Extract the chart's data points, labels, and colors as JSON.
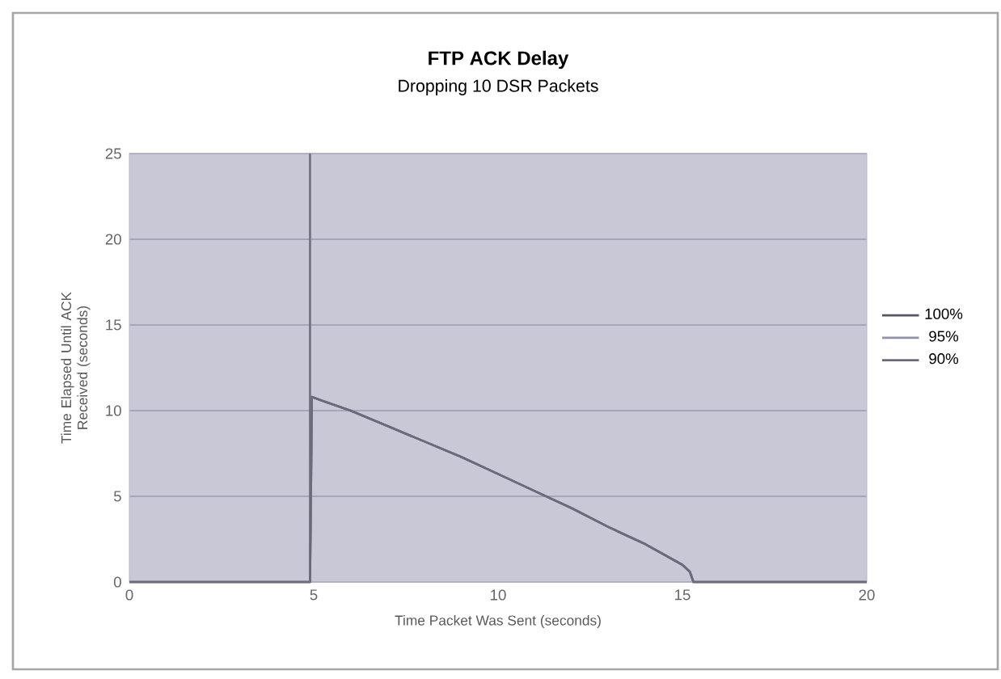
{
  "chart_data": {
    "type": "line",
    "title": "FTP ACK Delay",
    "subtitle": "Dropping 10 DSR Packets",
    "xlabel": "Time Packet Was Sent (seconds)",
    "ylabel": "Time Elapsed Until ACK Received (seconds)",
    "xlim": [
      0,
      20
    ],
    "xticks": [
      0,
      5,
      10,
      15,
      20
    ],
    "ylim": [
      0,
      25
    ],
    "yticks": [
      0,
      5,
      10,
      15,
      20,
      25
    ],
    "grid": "y",
    "legend": "right",
    "marker": "none",
    "line_style": "solid",
    "ref_lines": [
      {
        "axis": "x",
        "value": 4.9,
        "color": "#707080"
      }
    ],
    "series": [
      {
        "name": "100%",
        "color": "#555566",
        "x": [
          0,
          4.9,
          4.95,
          5.2,
          6,
          7,
          8,
          9,
          10,
          11,
          12,
          13,
          14,
          15,
          15.2,
          15.3,
          20
        ],
        "values": [
          0,
          0,
          10.8,
          10.6,
          10,
          9.1,
          8.2,
          7.3,
          6.3,
          5.3,
          4.3,
          3.2,
          2.2,
          1.0,
          0.6,
          0,
          0
        ]
      },
      {
        "name": "95%",
        "color": "#9090a8",
        "x": [
          0,
          4.9,
          4.95,
          5.2,
          6,
          7,
          8,
          9,
          10,
          11,
          12,
          13,
          14,
          15,
          15.2,
          15.3,
          20
        ],
        "values": [
          0,
          0,
          10.8,
          10.6,
          10,
          9.1,
          8.2,
          7.3,
          6.3,
          5.3,
          4.3,
          3.2,
          2.2,
          1.0,
          0.6,
          0,
          0
        ]
      },
      {
        "name": "90%",
        "color": "#6a6a7a",
        "x": [
          0,
          4.9,
          4.95,
          5.2,
          6,
          7,
          8,
          9,
          10,
          11,
          12,
          13,
          14,
          15,
          15.2,
          15.3,
          20
        ],
        "values": [
          0,
          0,
          10.8,
          10.6,
          10,
          9.1,
          8.2,
          7.3,
          6.3,
          5.3,
          4.3,
          3.2,
          2.2,
          1.0,
          0.6,
          0,
          0
        ]
      }
    ]
  }
}
